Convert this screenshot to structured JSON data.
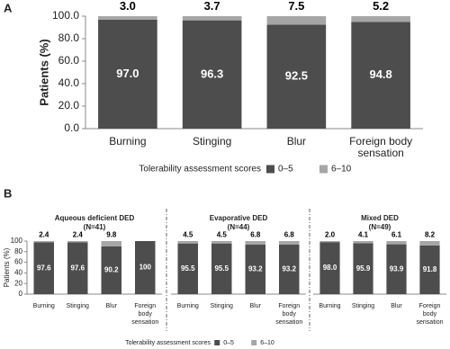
{
  "chart_data": [
    {
      "type": "stacked_bar",
      "panel_label": "A",
      "y_label": "Patients (%)",
      "categories": [
        "Burning",
        "Stinging",
        "Blur",
        "Foreign body sensation"
      ],
      "series": [
        {
          "name": "0–5",
          "color": "#4d4d4d",
          "values": [
            97.0,
            96.3,
            92.5,
            94.8
          ],
          "value_labels": [
            "97.0",
            "96.3",
            "92.5",
            "94.8"
          ]
        },
        {
          "name": "6–10",
          "color": "#a6a6a6",
          "values": [
            3.0,
            3.7,
            7.5,
            5.2
          ],
          "value_labels": [
            "3.0",
            "3.7",
            "7.5",
            "5.2"
          ]
        }
      ],
      "ylim": [
        0,
        100
      ],
      "yticks": [
        {
          "value": 0,
          "label": "0.0"
        },
        {
          "value": 20,
          "label": "20.0"
        },
        {
          "value": 40,
          "label": "40.0"
        },
        {
          "value": 60,
          "label": "60.0"
        },
        {
          "value": 80,
          "label": "80.0"
        },
        {
          "value": 100,
          "label": "100.0"
        }
      ],
      "legend_title": "Tolerability assessment scores",
      "legend_position": "bottom"
    },
    {
      "type": "grouped_stacked_bar",
      "panel_label": "B",
      "y_label": "Patients (%)",
      "series": [
        {
          "name": "0–5",
          "color": "#4d4d4d"
        },
        {
          "name": "6–10",
          "color": "#a6a6a6"
        }
      ],
      "ylim": [
        0,
        100
      ],
      "yticks": [
        0,
        20,
        40,
        60,
        80,
        100
      ],
      "legend_title": "Tolerability assessment scores",
      "legend_position": "bottom",
      "groups": [
        {
          "title": "Aqueous deficient DED",
          "subtitle": "(N=41)",
          "categories": [
            "Burning",
            "Stinging",
            "Blur",
            "Foreign body sensation"
          ],
          "series": [
            {
              "values": [
                97.6,
                97.6,
                90.2,
                100
              ],
              "value_labels": [
                "97.6",
                "97.6",
                "90.2",
                "100"
              ]
            },
            {
              "values": [
                2.4,
                2.4,
                9.8,
                null
              ],
              "value_labels": [
                "2.4",
                "2.4",
                "9.8",
                null
              ]
            }
          ]
        },
        {
          "title": "Evaporative DED",
          "subtitle": "(N=44)",
          "categories": [
            "Burning",
            "Stinging",
            "Blur",
            "Foreign body sensation"
          ],
          "series": [
            {
              "values": [
                95.5,
                95.5,
                93.2,
                93.2
              ],
              "value_labels": [
                "95.5",
                "95.5",
                "93.2",
                "93.2"
              ]
            },
            {
              "values": [
                4.5,
                4.5,
                6.8,
                6.8
              ],
              "value_labels": [
                "4.5",
                "4.5",
                "6.8",
                "6.8"
              ]
            }
          ]
        },
        {
          "title": "Mixed DED",
          "subtitle": "(N=49)",
          "categories": [
            "Burning",
            "Stinging",
            "Blur",
            "Foreign body sensation"
          ],
          "series": [
            {
              "values": [
                98.0,
                95.9,
                93.9,
                91.8
              ],
              "value_labels": [
                "98.0",
                "95.9",
                "93.9",
                "91.8"
              ]
            },
            {
              "values": [
                2.0,
                4.1,
                6.1,
                8.2
              ],
              "value_labels": [
                "2.0",
                "4.1",
                "6.1",
                "8.2"
              ]
            }
          ]
        }
      ]
    }
  ]
}
